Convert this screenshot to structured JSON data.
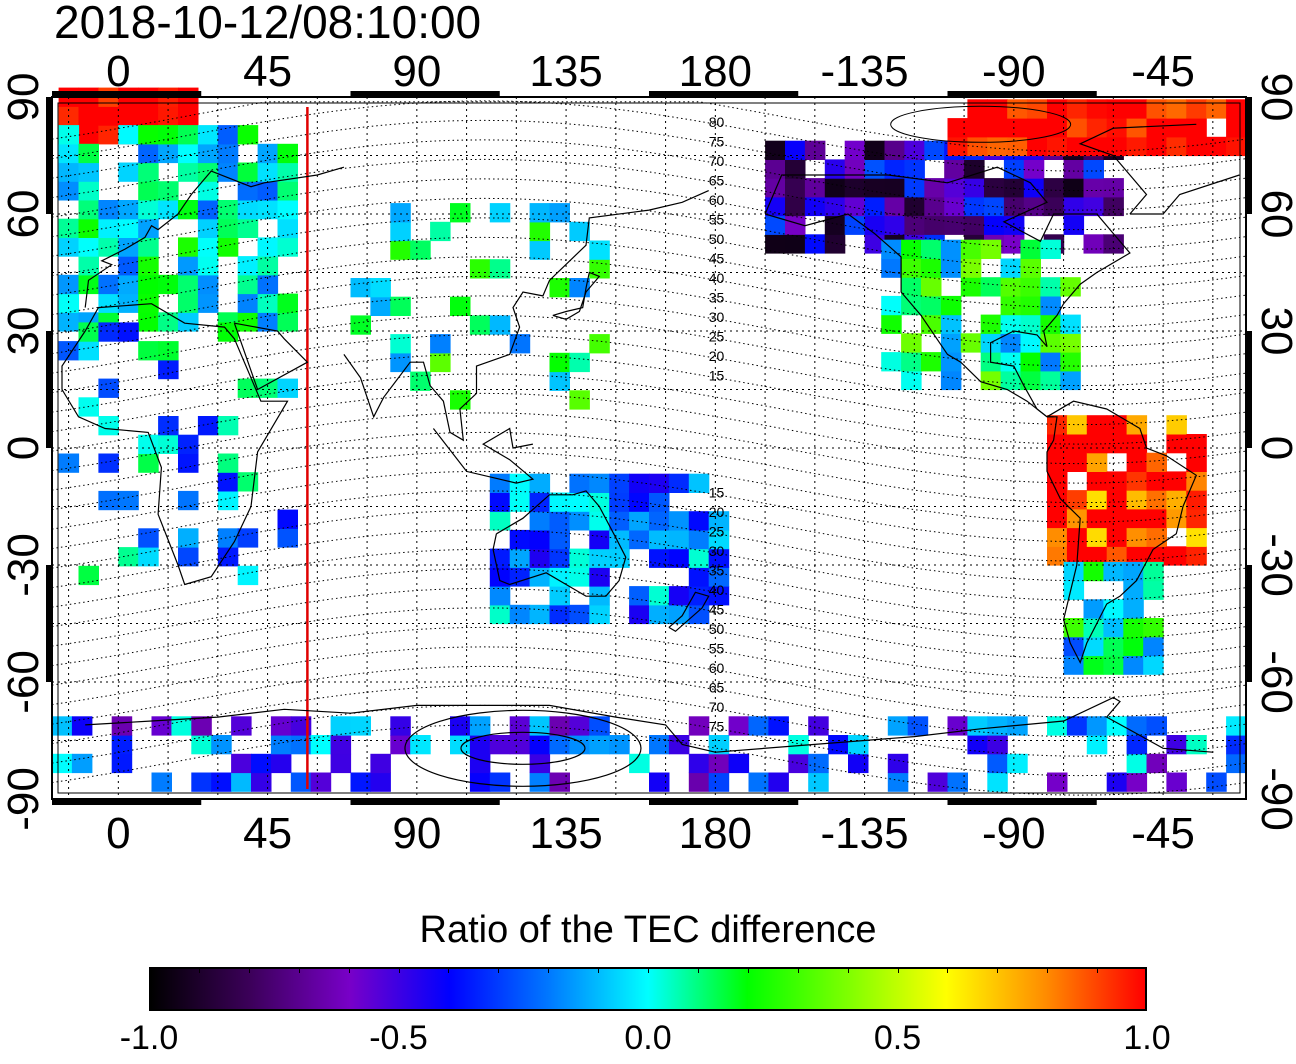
{
  "timestamp": "2018-10-12/08:10:00",
  "map": {
    "projection": "cylindrical, longitude from -20 to 340 (center 160E)",
    "top_lon_labels": [
      "0",
      "45",
      "90",
      "135",
      "180",
      "-135",
      "-90",
      "-45"
    ],
    "bottom_lon_labels": [
      "0",
      "45",
      "90",
      "135",
      "180",
      "-135",
      "-90",
      "-45"
    ],
    "left_lat_labels": [
      "90",
      "60",
      "30",
      "0",
      "-30",
      "-60",
      "-90"
    ],
    "right_lat_labels": [
      "90",
      "60",
      "30",
      "0",
      "-30",
      "-60",
      "-90"
    ],
    "meridian_marker": {
      "longitude": 57,
      "color": "#e00000"
    },
    "geomagnetic_contour_labels_north": [
      "80",
      "75",
      "70",
      "65",
      "60",
      "55",
      "50",
      "45",
      "40",
      "35",
      "30",
      "25",
      "20",
      "15"
    ],
    "geomagnetic_contour_labels_south": [
      "15",
      "20",
      "25",
      "30",
      "35",
      "40",
      "45",
      "50",
      "55",
      "60",
      "65",
      "70",
      "75"
    ],
    "data_regions": [
      {
        "region": "Arctic Europe",
        "value": 1.0
      },
      {
        "region": "Europe",
        "value": 0.0
      },
      {
        "region": "Africa",
        "value": -0.1
      },
      {
        "region": "East Asia",
        "value": 0.05
      },
      {
        "region": "Australia",
        "value": -0.2
      },
      {
        "region": "Canada/Alaska",
        "value": -0.6
      },
      {
        "region": "North America",
        "value": 0.1
      },
      {
        "region": "South America north",
        "value": 1.0
      },
      {
        "region": "South America south",
        "value": 0.0
      },
      {
        "region": "Antarctica",
        "value": -0.3
      },
      {
        "region": "Arctic Greenland",
        "value": 1.0
      }
    ]
  },
  "colorbar": {
    "title": "Ratio of the TEC difference",
    "min": -1.0,
    "max": 1.0,
    "tick_labels": [
      "-1.0",
      "-0.5",
      "0.0",
      "0.5",
      "1.0"
    ],
    "gradient_stops": [
      "#000000",
      "#3c005a",
      "#7800c8",
      "#0000ff",
      "#0078ff",
      "#00ffff",
      "#00ff00",
      "#7dff00",
      "#ffff00",
      "#ff8c00",
      "#ff0000"
    ]
  }
}
